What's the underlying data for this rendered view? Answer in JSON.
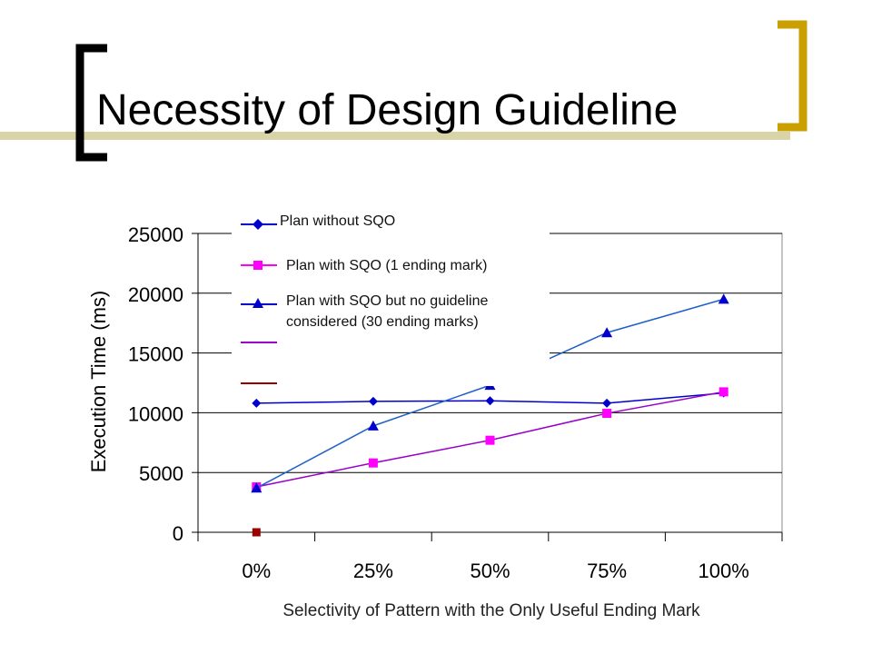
{
  "slide": {
    "title": "Necessity of Design Guideline"
  },
  "colors": {
    "bracket_dark": "#000000",
    "bracket_gold": "#C9A000",
    "title_rule": "#D8D4A8"
  },
  "chart_data": {
    "type": "line",
    "categories": [
      "0%",
      "25%",
      "50%",
      "75%",
      "100%"
    ],
    "series": [
      {
        "name": "Plan without SQO",
        "values": [
          10800,
          10950,
          11000,
          10800,
          11650
        ],
        "color": "#0000CC",
        "marker": "diamond"
      },
      {
        "name": "Plan with SQO (1 ending mark)",
        "values": [
          3800,
          5800,
          7700,
          9950,
          11750
        ],
        "color": "#FF00FF",
        "line_color": "#9900CC",
        "marker": "square"
      },
      {
        "name": "Plan with SQO but no guideline considered (30 ending marks)",
        "values": [
          3700,
          8900,
          12300,
          16700,
          19500
        ],
        "color": "#0000CC",
        "line_color": "#1F5FC8",
        "marker": "triangle"
      }
    ],
    "extra_marker": {
      "category": "0%",
      "value": 0,
      "color": "#990000"
    },
    "xlabel": "Selectivity of Pattern with the Only Useful Ending Mark",
    "ylabel": "Execution Time (ms)",
    "ylim": [
      0,
      25000
    ],
    "yticks": [
      "0",
      "5000",
      "10000",
      "15000",
      "20000",
      "25000"
    ],
    "grid": true,
    "legend_position": "top-left"
  }
}
